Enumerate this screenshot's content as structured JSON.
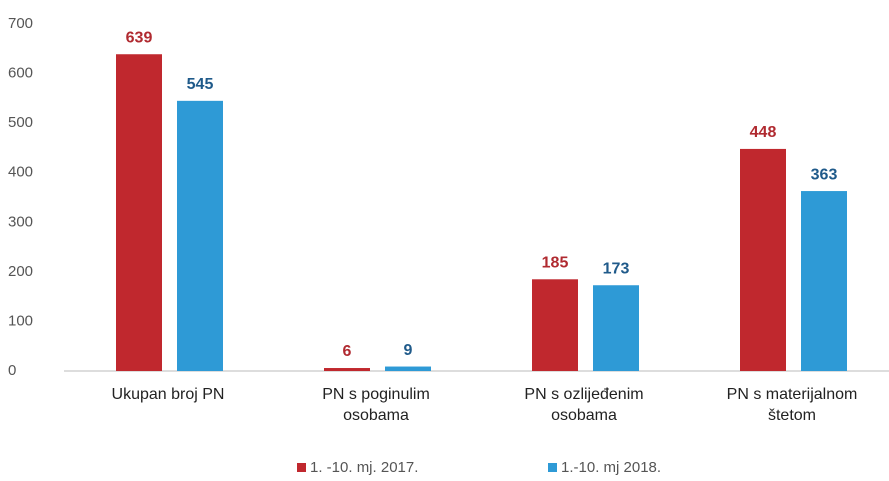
{
  "chart_data": {
    "type": "bar",
    "categories": [
      [
        "Ukupan broj PN"
      ],
      [
        "PN s poginulim",
        "osobama"
      ],
      [
        "PN s ozlijeđenim",
        "osobama"
      ],
      [
        "PN s materijalnom",
        "štetom"
      ]
    ],
    "series": [
      {
        "name": "1. -10. mj. 2017.",
        "color": "#c0282e",
        "label_color": "#b02a30",
        "values": [
          639,
          6,
          185,
          448
        ]
      },
      {
        "name": "1.-10. mj 2018.",
        "color": "#2e9ad6",
        "label_color": "#1f5a8a",
        "values": [
          545,
          9,
          173,
          363
        ]
      }
    ],
    "ylim": [
      0,
      700
    ],
    "yticks": [
      0,
      100,
      200,
      300,
      400,
      500,
      600,
      700
    ],
    "grid": false,
    "legend": "bottom"
  }
}
